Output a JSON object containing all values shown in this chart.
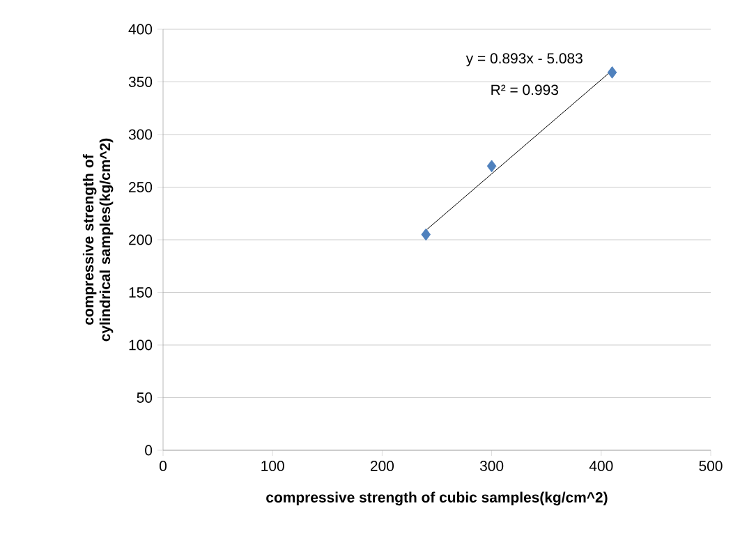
{
  "chart_data": {
    "type": "scatter",
    "xlabel": "compressive strength of cubic samples(kg/cm^2)",
    "ylabel": "compressive strength of cylindrical samples(kg/cm^2)",
    "series": [
      {
        "color": "#4f81bd",
        "marker": "diamond",
        "x": [
          240,
          300,
          410
        ],
        "values": [
          205,
          270,
          359
        ]
      },
      {
        "type": "line",
        "color": "#000000",
        "marker": "none",
        "line_style": "solid",
        "x": [
          240,
          410
        ],
        "values": [
          209,
          361
        ]
      }
    ],
    "annotations": [
      "y = 0.893x - 5.083",
      "R² = 0.993"
    ],
    "xlim": [
      0,
      500
    ],
    "ylim": [
      0,
      400
    ],
    "xticks": [
      0,
      100,
      200,
      300,
      400,
      500
    ],
    "yticks": [
      0,
      50,
      100,
      150,
      200,
      250,
      300,
      350,
      400
    ],
    "grid": "y"
  }
}
